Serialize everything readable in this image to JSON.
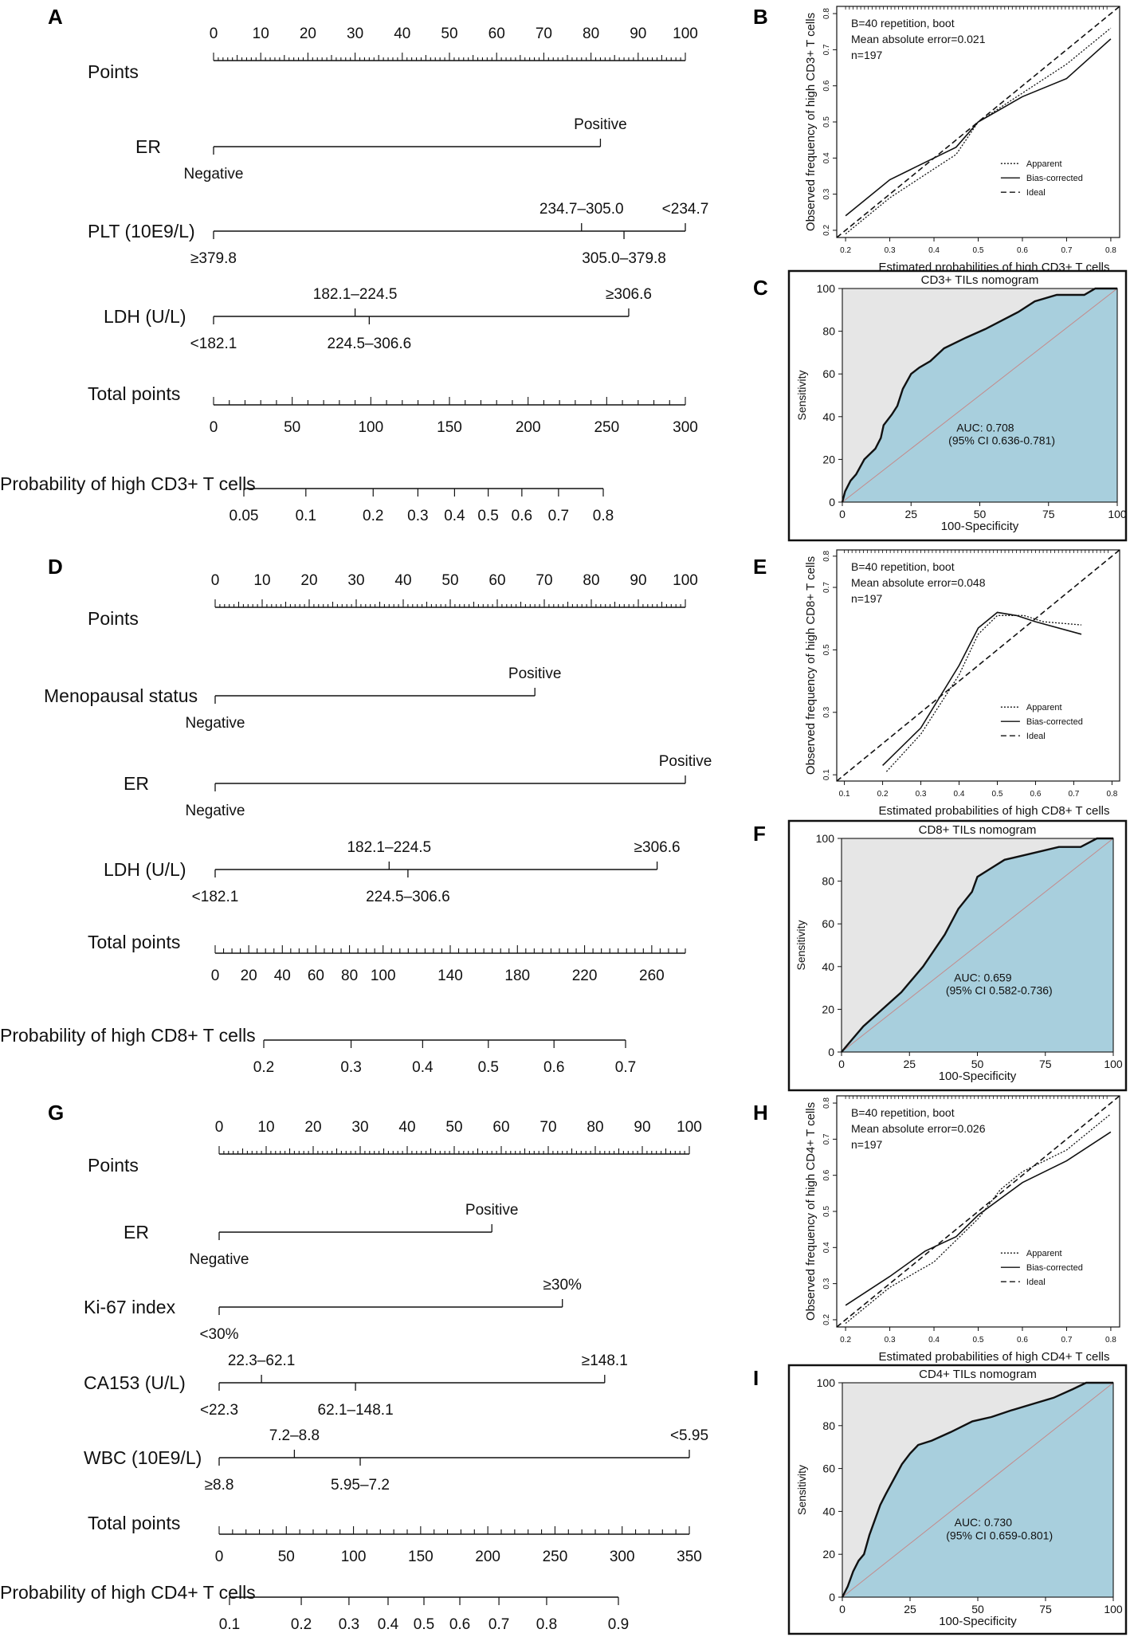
{
  "panels": [
    {
      "letter": "A",
      "x": "nomo",
      "y": "top"
    },
    {
      "letter": "B"
    },
    {
      "letter": "C"
    },
    {
      "letter": "D"
    },
    {
      "letter": "E"
    },
    {
      "letter": "F"
    },
    {
      "letter": "G"
    },
    {
      "letter": "H"
    },
    {
      "letter": "I"
    }
  ],
  "chart_data": [
    {
      "type": "nomogram",
      "panel": "A",
      "points_label": "Points",
      "points_ticks": [
        "0",
        "10",
        "20",
        "30",
        "40",
        "50",
        "60",
        "70",
        "80",
        "90",
        "100"
      ],
      "variables": [
        {
          "name": "ER",
          "levels": [
            {
              "label": "Negative",
              "points": 0,
              "pos": "below"
            },
            {
              "label": "Positive",
              "points": 82,
              "pos": "above"
            }
          ]
        },
        {
          "name": "PLT (10E9/L)",
          "levels": [
            {
              "label": "≥379.8",
              "points": 0,
              "pos": "below"
            },
            {
              "label": "234.7–305.0",
              "points": 78,
              "pos": "above"
            },
            {
              "label": "305.0–379.8",
              "points": 87,
              "pos": "below"
            },
            {
              "label": "<234.7",
              "points": 100,
              "pos": "above"
            }
          ]
        },
        {
          "name": "LDH (U/L)",
          "levels": [
            {
              "label": "<182.1",
              "points": 0,
              "pos": "below"
            },
            {
              "label": "182.1–224.5",
              "points": 30,
              "pos": "above"
            },
            {
              "label": "224.5–306.6",
              "points": 33,
              "pos": "below"
            },
            {
              "label": "≥306.6",
              "points": 88,
              "pos": "above"
            }
          ]
        }
      ],
      "total_label": "Total points",
      "total_range": [
        0,
        300
      ],
      "total_ticks": [
        "0",
        "50",
        "100",
        "150",
        "200",
        "250",
        "300"
      ],
      "prob_label": "Probability of high CD3+ T cells",
      "prob_ticks": [
        "0.05",
        "0.1",
        "0.2",
        "0.3",
        "0.4",
        "0.5",
        "0.6",
        "0.7",
        "0.8"
      ]
    },
    {
      "type": "calibration",
      "panel": "B",
      "text": [
        "B=40 repetition, boot",
        "Mean absolute error=0.021",
        "n=197"
      ],
      "xlabel": "Estimated probabilities of high CD3+ T cells",
      "ylabel": "Observed frequency of high CD3+ T cells",
      "xlim": [
        0.18,
        0.82
      ],
      "ylim": [
        0.18,
        0.82
      ],
      "xticks": [
        "0.2",
        "0.3",
        "0.4",
        "0.5",
        "0.6",
        "0.7",
        "0.8"
      ],
      "yticks": [
        "0.2",
        "0.3",
        "0.4",
        "0.5",
        "0.6",
        "0.7",
        "0.8"
      ],
      "legend": [
        "Apparent",
        "Bias-corrected",
        "Ideal"
      ],
      "apparent": [
        [
          0.2,
          0.19
        ],
        [
          0.3,
          0.29
        ],
        [
          0.4,
          0.37
        ],
        [
          0.45,
          0.41
        ],
        [
          0.5,
          0.5
        ],
        [
          0.6,
          0.58
        ],
        [
          0.7,
          0.66
        ],
        [
          0.8,
          0.76
        ]
      ],
      "bias_corrected": [
        [
          0.2,
          0.24
        ],
        [
          0.3,
          0.34
        ],
        [
          0.4,
          0.4
        ],
        [
          0.45,
          0.43
        ],
        [
          0.5,
          0.5
        ],
        [
          0.6,
          0.57
        ],
        [
          0.7,
          0.62
        ],
        [
          0.8,
          0.73
        ]
      ]
    },
    {
      "type": "roc",
      "panel": "C",
      "title": "CD3+ TILs nomogram",
      "xlabel": "100-Specificity",
      "ylabel": "Sensitivity",
      "ticks": [
        "0",
        "25",
        "50",
        "75",
        "100"
      ],
      "yticks": [
        "0",
        "20",
        "40",
        "60",
        "80",
        "100"
      ],
      "auc_label": "AUC: 0.708",
      "ci_label": "(95% CI 0.636-0.781)",
      "curve": [
        [
          0,
          0
        ],
        [
          1,
          5
        ],
        [
          3,
          10
        ],
        [
          5,
          13
        ],
        [
          8,
          20
        ],
        [
          12,
          25
        ],
        [
          14,
          30
        ],
        [
          15,
          36
        ],
        [
          18,
          41
        ],
        [
          20,
          45
        ],
        [
          22,
          53
        ],
        [
          25,
          60
        ],
        [
          28,
          63
        ],
        [
          32,
          66
        ],
        [
          37,
          72
        ],
        [
          45,
          77
        ],
        [
          52,
          81
        ],
        [
          58,
          85
        ],
        [
          64,
          89
        ],
        [
          70,
          94
        ],
        [
          78,
          97
        ],
        [
          88,
          97
        ],
        [
          92,
          100
        ],
        [
          100,
          100
        ]
      ]
    },
    {
      "type": "nomogram",
      "panel": "D",
      "points_label": "Points",
      "points_ticks": [
        "0",
        "10",
        "20",
        "30",
        "40",
        "50",
        "60",
        "70",
        "80",
        "90",
        "100"
      ],
      "variables": [
        {
          "name": "Menopausal  status",
          "levels": [
            {
              "label": "Negative",
              "points": 0,
              "pos": "below"
            },
            {
              "label": "Positive",
              "points": 68,
              "pos": "above"
            }
          ]
        },
        {
          "name": "ER",
          "levels": [
            {
              "label": "Negative",
              "points": 0,
              "pos": "below"
            },
            {
              "label": "Positive",
              "points": 100,
              "pos": "above"
            }
          ]
        },
        {
          "name": "LDH (U/L)",
          "levels": [
            {
              "label": "<182.1",
              "points": 0,
              "pos": "below"
            },
            {
              "label": "182.1–224.5",
              "points": 37,
              "pos": "above"
            },
            {
              "label": "224.5–306.6",
              "points": 41,
              "pos": "below"
            },
            {
              "label": "≥306.6",
              "points": 94,
              "pos": "above"
            }
          ]
        }
      ],
      "total_label": "Total points",
      "total_range": [
        0,
        280
      ],
      "total_ticks": [
        "0",
        "20",
        "40",
        "60",
        "80",
        "100",
        "140",
        "180",
        "220",
        "260"
      ],
      "prob_label": "Probability of high CD8+ T cells",
      "prob_ticks": [
        "0.2",
        "0.3",
        "0.4",
        "0.5",
        "0.6",
        "0.7"
      ]
    },
    {
      "type": "calibration",
      "panel": "E",
      "text": [
        "B=40 repetition, boot",
        "Mean absolute error=0.048",
        "n=197"
      ],
      "xlabel": "Estimated probabilities of high CD8+ T cells",
      "ylabel": "Observed frequency of high CD8+ T cells",
      "xlim": [
        0.08,
        0.82
      ],
      "ylim": [
        0.08,
        0.82
      ],
      "xticks": [
        "0.1",
        "0.2",
        "0.3",
        "0.4",
        "0.5",
        "0.6",
        "0.7",
        "0.8"
      ],
      "yticks": [
        "0.1",
        "0.3",
        "0.5",
        "0.7",
        "0.8"
      ],
      "legend": [
        "Apparent",
        "Bias-corrected",
        "Ideal"
      ],
      "apparent": [
        [
          0.21,
          0.11
        ],
        [
          0.3,
          0.23
        ],
        [
          0.4,
          0.42
        ],
        [
          0.45,
          0.55
        ],
        [
          0.5,
          0.61
        ],
        [
          0.57,
          0.61
        ],
        [
          0.62,
          0.59
        ],
        [
          0.72,
          0.58
        ]
      ],
      "bias_corrected": [
        [
          0.2,
          0.13
        ],
        [
          0.3,
          0.25
        ],
        [
          0.4,
          0.45
        ],
        [
          0.45,
          0.57
        ],
        [
          0.5,
          0.62
        ],
        [
          0.55,
          0.61
        ],
        [
          0.6,
          0.59
        ],
        [
          0.72,
          0.55
        ]
      ]
    },
    {
      "type": "roc",
      "panel": "F",
      "title": "CD8+ TILs nomogram",
      "xlabel": "100-Specificity",
      "ylabel": "Sensitivity",
      "ticks": [
        "0",
        "25",
        "50",
        "75",
        "100"
      ],
      "yticks": [
        "0",
        "20",
        "40",
        "60",
        "80",
        "100"
      ],
      "auc_label": "AUC: 0.659",
      "ci_label": "(95% CI 0.582-0.736)",
      "curve": [
        [
          0,
          0
        ],
        [
          4,
          6
        ],
        [
          8,
          12
        ],
        [
          15,
          20
        ],
        [
          22,
          28
        ],
        [
          30,
          40
        ],
        [
          38,
          55
        ],
        [
          43,
          67
        ],
        [
          48,
          75
        ],
        [
          50,
          82
        ],
        [
          55,
          86
        ],
        [
          60,
          90
        ],
        [
          70,
          93
        ],
        [
          80,
          96
        ],
        [
          88,
          96
        ],
        [
          94,
          100
        ],
        [
          100,
          100
        ]
      ]
    },
    {
      "type": "nomogram",
      "panel": "G",
      "points_label": "Points",
      "points_ticks": [
        "0",
        "10",
        "20",
        "30",
        "40",
        "50",
        "60",
        "70",
        "80",
        "90",
        "100"
      ],
      "variables": [
        {
          "name": "ER",
          "levels": [
            {
              "label": "Negative",
              "points": 0,
              "pos": "below"
            },
            {
              "label": "Positive",
              "points": 58,
              "pos": "above"
            }
          ]
        },
        {
          "name": "Ki-67 index",
          "levels": [
            {
              "label": "<30%",
              "points": 0,
              "pos": "below"
            },
            {
              "label": "≥30%",
              "points": 73,
              "pos": "above"
            }
          ]
        },
        {
          "name": "CA153 (U/L)",
          "levels": [
            {
              "label": "<22.3",
              "points": 0,
              "pos": "below"
            },
            {
              "label": "22.3–62.1",
              "points": 9,
              "pos": "above"
            },
            {
              "label": "62.1–148.1",
              "points": 29,
              "pos": "below"
            },
            {
              "label": "≥148.1",
              "points": 82,
              "pos": "above"
            }
          ]
        },
        {
          "name": "WBC (10E9/L)",
          "levels": [
            {
              "label": "≥8.8",
              "points": 0,
              "pos": "below"
            },
            {
              "label": "7.2–8.8",
              "points": 16,
              "pos": "above"
            },
            {
              "label": "5.95–7.2",
              "points": 30,
              "pos": "below"
            },
            {
              "label": "<5.95",
              "points": 100,
              "pos": "above"
            }
          ]
        }
      ],
      "total_label": "Total points",
      "total_range": [
        0,
        350
      ],
      "total_ticks": [
        "0",
        "50",
        "100",
        "150",
        "200",
        "250",
        "300",
        "350"
      ],
      "prob_label": "Probability of high CD4+ T cells",
      "prob_ticks": [
        "0.1",
        "0.2",
        "0.3",
        "0.4",
        "0.5",
        "0.6",
        "0.7",
        "0.8",
        "0.9"
      ]
    },
    {
      "type": "calibration",
      "panel": "H",
      "text": [
        "B=40 repetition, boot",
        "Mean absolute error=0.026",
        "n=197"
      ],
      "xlabel": "Estimated probabilities of high CD4+ T cells",
      "ylabel": "Observed frequency of high CD4+ T cells",
      "xlim": [
        0.18,
        0.82
      ],
      "ylim": [
        0.18,
        0.82
      ],
      "xticks": [
        "0.2",
        "0.3",
        "0.4",
        "0.5",
        "0.6",
        "0.7",
        "0.8"
      ],
      "yticks": [
        "0.2",
        "0.3",
        "0.4",
        "0.5",
        "0.6",
        "0.7",
        "0.8"
      ],
      "legend": [
        "Apparent",
        "Bias-corrected",
        "Ideal"
      ],
      "apparent": [
        [
          0.2,
          0.19
        ],
        [
          0.3,
          0.29
        ],
        [
          0.4,
          0.36
        ],
        [
          0.5,
          0.48
        ],
        [
          0.55,
          0.56
        ],
        [
          0.6,
          0.61
        ],
        [
          0.7,
          0.67
        ],
        [
          0.8,
          0.77
        ]
      ],
      "bias_corrected": [
        [
          0.2,
          0.24
        ],
        [
          0.3,
          0.32
        ],
        [
          0.38,
          0.39
        ],
        [
          0.45,
          0.43
        ],
        [
          0.5,
          0.49
        ],
        [
          0.6,
          0.58
        ],
        [
          0.7,
          0.64
        ],
        [
          0.8,
          0.72
        ]
      ]
    },
    {
      "type": "roc",
      "panel": "I",
      "title": "CD4+ TILs nomogram",
      "xlabel": "100-Specificity",
      "ylabel": "Sensitivity",
      "ticks": [
        "0",
        "25",
        "50",
        "75",
        "100"
      ],
      "yticks": [
        "0",
        "20",
        "40",
        "60",
        "80",
        "100"
      ],
      "auc_label": "AUC: 0.730",
      "ci_label": "(95% CI 0.659-0.801)",
      "curve": [
        [
          0,
          0
        ],
        [
          2,
          5
        ],
        [
          4,
          12
        ],
        [
          6,
          17
        ],
        [
          8,
          20
        ],
        [
          10,
          29
        ],
        [
          12,
          36
        ],
        [
          14,
          43
        ],
        [
          16,
          48
        ],
        [
          19,
          55
        ],
        [
          22,
          62
        ],
        [
          25,
          67
        ],
        [
          28,
          71
        ],
        [
          33,
          73
        ],
        [
          40,
          77
        ],
        [
          48,
          82
        ],
        [
          55,
          84
        ],
        [
          62,
          87
        ],
        [
          70,
          90
        ],
        [
          78,
          93
        ],
        [
          85,
          97
        ],
        [
          90,
          100
        ],
        [
          100,
          100
        ]
      ]
    }
  ]
}
